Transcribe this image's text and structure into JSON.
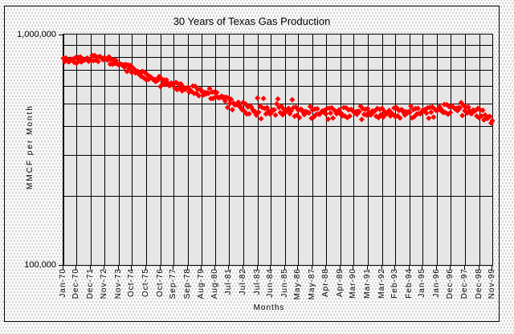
{
  "page": {
    "background_dot_color": "#b9b9b9",
    "frame_border_color": "#000000"
  },
  "chart": {
    "plot_pattern_color": "#9c9c9c",
    "gridline_color": "#000000",
    "series_color": "#ff0000",
    "marker_style": "diamond"
  },
  "chart_data": {
    "type": "scatter",
    "title": "30 Years of Texas Gas Production",
    "xlabel": "Months",
    "ylabel": "MMCF per Month",
    "y_scale": "log",
    "ylim": [
      100000,
      1000000
    ],
    "y_tick_labels": [
      "1,000,000",
      "100,000"
    ],
    "y_minor_gridlines": [
      200000,
      300000,
      400000,
      500000,
      600000,
      700000,
      800000,
      900000
    ],
    "grid": "on",
    "legend": "none",
    "x_total_months": 358,
    "x_tick_labels": [
      "Jan-70",
      "Dec-70",
      "Dec-71",
      "Nov-72",
      "Nov-73",
      "Oct-74",
      "Oct-75",
      "Oct-76",
      "Sep-77",
      "Sep-78",
      "Aug-79",
      "Aug-80",
      "Jul-81",
      "Jul-82",
      "Jul-83",
      "Jun-84",
      "Jun-85",
      "May-86",
      "May-87",
      "Apr-88",
      "Apr-89",
      "Mar-90",
      "Mar-91",
      "Mar-92",
      "Feb-93",
      "Feb-94",
      "Jan-95",
      "Jan-96",
      "Dec-96",
      "Dec-97",
      "Dec-98",
      "Nov-99"
    ],
    "x_tick_month_index": [
      0,
      11,
      23,
      34,
      46,
      57,
      69,
      81,
      92,
      104,
      115,
      127,
      138,
      150,
      162,
      173,
      185,
      196,
      208,
      219,
      231,
      242,
      254,
      266,
      277,
      289,
      300,
      312,
      323,
      335,
      347,
      358
    ],
    "series": [
      {
        "name": "Texas gas production",
        "unit": "MMCF per month",
        "color": "#ff0000",
        "marker": "diamond",
        "start_month": "Jan-70",
        "end_month": "Nov-99",
        "values": [
          788000,
          762000,
          792000,
          775000,
          763000,
          764000,
          781000,
          778000,
          781000,
          757000,
          793000,
          751000,
          795000,
          771000,
          800000,
          760000,
          785000,
          774000,
          775000,
          785000,
          790000,
          765000,
          778000,
          773000,
          810000,
          770000,
          812000,
          774000,
          798000,
          764000,
          802000,
          800000,
          789000,
          777000,
          792000,
          786000,
          780000,
          774000,
          801000,
          744000,
          778000,
          743000,
          777000,
          749000,
          772000,
          745000,
          741000,
          745000,
          743000,
          736000,
          740000,
          720000,
          742000,
          691000,
          738000,
          712000,
          734000,
          684000,
          717000,
          709000,
          681000,
          687000,
          693000,
          672000,
          671000,
          657000,
          692000,
          650000,
          685000,
          637000,
          669000,
          638000,
          658000,
          653000,
          644000,
          637000,
          639000,
          625000,
          638000,
          634000,
          658000,
          595000,
          641000,
          613000,
          635000,
          607000,
          635000,
          616000,
          602000,
          601000,
          616000,
          611000,
          612000,
          586000,
          620000,
          576000,
          610000,
          584000,
          611000,
          569000,
          592000,
          579000,
          578000,
          586000,
          589000,
          562000,
          573000,
          566000,
          598000,
          556000,
          596000,
          556000,
          578000,
          542000,
          578000,
          574000,
          561000,
          547000,
          560000,
          552000,
          560000,
          555000,
          583000,
          527000,
          562000,
          528000,
          563000,
          536000,
          560000,
          534000,
          531000,
          536000,
          540000,
          532000,
          535000,
          514000,
          535000,
          483000,
          529000,
          502000,
          523000,
          472000,
          504000,
          495000,
          496000,
          502000,
          508000,
          487000,
          486000,
          472000,
          507000,
          465000,
          500000,
          452000,
          484000,
          453000,
          490000,
          483000,
          472000,
          463000,
          463000,
          447000,
          530000,
          460000,
          489000,
          431000,
          482000,
          528000,
          478000,
          452000,
          482000,
          465000,
          453000,
          454000,
          471000,
          468000,
          471000,
          447000,
          500000,
          525000,
          483000,
          459000,
          488000,
          448000,
          473000,
          462000,
          463000,
          473000,
          478000,
          453000,
          466000,
          521000,
          482000,
          442000,
          484000,
          446000,
          470000,
          436000,
          474000,
          472000,
          461000,
          449000,
          464000,
          458000,
          460000,
          457000,
          487000,
          433000,
          470000,
          438000,
          475000,
          450000,
          476000,
          452000,
          451000,
          458000,
          466000,
          462000,
          469000,
          452000,
          477000,
          429000,
          479000,
          456000,
          481000,
          434000,
          470000,
          465000,
          453000,
          462000,
          471000,
          453000,
          455000,
          444000,
          482000,
          443000,
          481000,
          436000,
          471000,
          443000,
          473000,
          470000,
          463000,
          458000,
          462000,
          450000,
          465000,
          463000,
          489000,
          428000,
          476000,
          450000,
          473000,
          447000,
          477000,
          460000,
          448000,
          449000,
          466000,
          463000,
          466000,
          442000,
          478000,
          436000,
          473000,
          449000,
          478000,
          438000,
          463000,
          452000,
          453000,
          463000,
          468000,
          443000,
          456000,
          451000,
          480000,
          440000,
          482000,
          444000,
          468000,
          434000,
          472000,
          470000,
          459000,
          447000,
          462000,
          456000,
          462000,
          459000,
          489000,
          435000,
          472000,
          440000,
          477000,
          452000,
          478000,
          454000,
          453000,
          460000,
          470000,
          466000,
          473000,
          456000,
          481000,
          433000,
          483000,
          460000,
          485000,
          438000,
          474000,
          469000,
          468000,
          477000,
          486000,
          468000,
          470000,
          459000,
          497000,
          458000,
          496000,
          451000,
          486000,
          458000,
          490000,
          487000,
          480000,
          475000,
          479000,
          467000,
          482000,
          480000,
          506000,
          445000,
          493000,
          467000,
          483000,
          456000,
          485000,
          467000,
          454000,
          454000,
          470000,
          466000,
          468000,
          443000,
          478000,
          435000,
          470000,
          443000,
          469000,
          426000,
          448000,
          434000,
          432000,
          439000,
          441000,
          413000,
          423000
        ]
      }
    ]
  }
}
